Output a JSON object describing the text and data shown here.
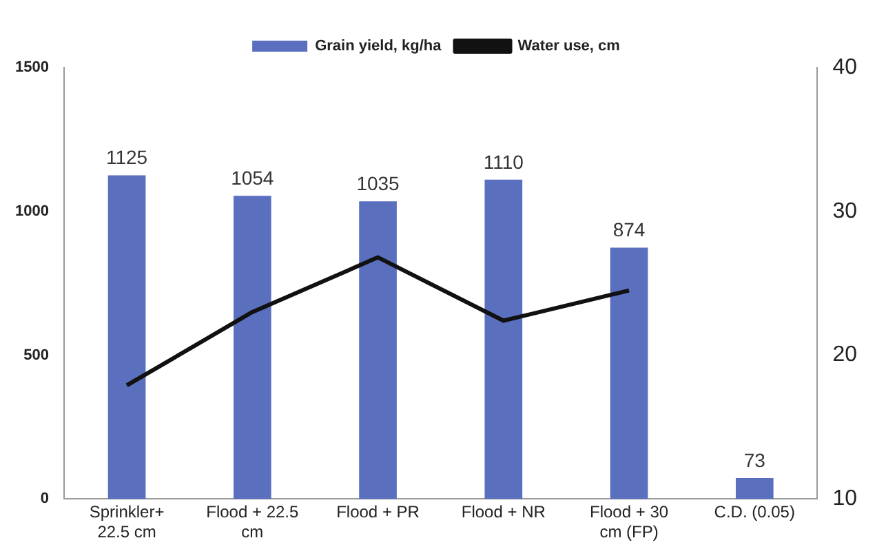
{
  "chart_data": {
    "type": "bar",
    "categories": [
      "Sprinkler+ 22.5 cm",
      "Flood + 22.5 cm",
      "Flood + PR",
      "Flood + NR",
      "Flood + 30 cm (FP)",
      "C.D. (0.05)"
    ],
    "series": [
      {
        "name": "Grain yield, kg/ha",
        "color": "#5b6fbf",
        "values": [
          1125,
          1054,
          1035,
          1110,
          874,
          73
        ],
        "value_labels": [
          "1125",
          "1054",
          "1035",
          "1110",
          "874",
          "73"
        ]
      },
      {
        "name": "Water use, cm",
        "type": "line",
        "axis": "y2",
        "color": "#111111",
        "values": [
          17.9,
          23.0,
          26.8,
          22.4,
          24.5,
          null
        ]
      }
    ],
    "ylim": [
      0,
      1500
    ],
    "yticks": [
      0,
      500,
      1000,
      1500
    ],
    "y2lim": [
      10,
      40
    ],
    "y2ticks": [
      10,
      20,
      30,
      40
    ],
    "legend": "top",
    "grid": false,
    "marker": "none"
  }
}
